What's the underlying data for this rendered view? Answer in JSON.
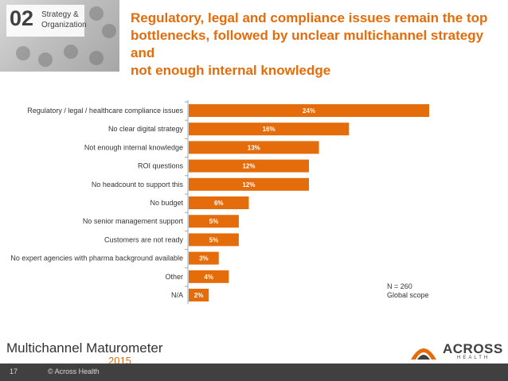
{
  "section": {
    "number": "02",
    "label_line1": "Strategy &",
    "label_line2": "Organization"
  },
  "title": {
    "line1": "Regulatory, legal and compliance issues remain the top",
    "line2": "bottlenecks, followed by unclear multichannel strategy and",
    "line3": "not enough internal knowledge"
  },
  "chart_data": {
    "type": "bar",
    "orientation": "horizontal",
    "categories": [
      "Regulatory / legal / healthcare compliance issues",
      "No clear digital strategy",
      "Not enough internal knowledge",
      "ROI questions",
      "No headcount to support this",
      "No budget",
      "No senior management support",
      "Customers are not ready",
      "No expert agencies with pharma background available",
      "Other",
      "N/A"
    ],
    "values": [
      24,
      16,
      13,
      12,
      12,
      6,
      5,
      5,
      3,
      4,
      2
    ],
    "value_labels": [
      "24%",
      "16%",
      "13%",
      "12%",
      "12%",
      "6%",
      "5%",
      "5%",
      "3%",
      "4%",
      "2%"
    ],
    "unit": "%",
    "xlim": [
      0,
      25
    ],
    "bar_color": "#e46c0a",
    "grid": false,
    "legend": "none"
  },
  "note": {
    "line1": "N = 260",
    "line2": "Global scope"
  },
  "brand": {
    "name": "Multichannel Maturometer",
    "year": "2015"
  },
  "logo": {
    "name": "ACROSS",
    "sub": "HEALTH"
  },
  "footer": {
    "page": "17",
    "copyright": "© Across Health"
  },
  "colors": {
    "accent": "#e46c0a",
    "footer_bg": "#404040",
    "text": "#333333"
  }
}
